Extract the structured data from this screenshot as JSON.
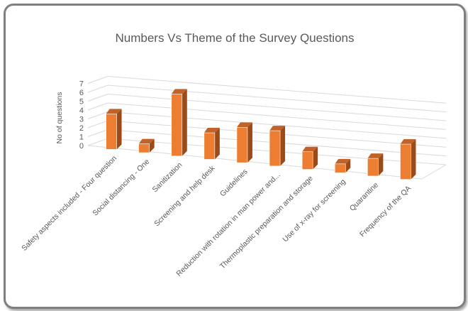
{
  "chart_data": {
    "type": "bar",
    "style": "3d-column",
    "title": "Numbers Vs Theme of the Survey Questions",
    "xlabel": "",
    "ylabel": "No of questions",
    "ylim": [
      0,
      7
    ],
    "yticks": [
      0,
      1,
      2,
      3,
      4,
      5,
      6,
      7
    ],
    "grid": true,
    "legend": "none",
    "categories": [
      "Safety aspects included - Four question",
      "Social distancing - One",
      "Sanitization",
      "Screening and help desk",
      "Guidelines",
      "Reduction with rotation in man power and...",
      "Thermoplastic preparation and storage",
      "Use of x-ray for screening",
      "Quarantine",
      "Frequency of the QA"
    ],
    "values": [
      4,
      1,
      7,
      3,
      4,
      4,
      2,
      1,
      2,
      4
    ],
    "colors": {
      "bar_front": "#ED7D31",
      "bar_side": "#9C4A17",
      "bar_top": "#C0622A",
      "grid": "#d9d9d9",
      "text": "#595959",
      "frame": "#7f7f7f"
    }
  }
}
